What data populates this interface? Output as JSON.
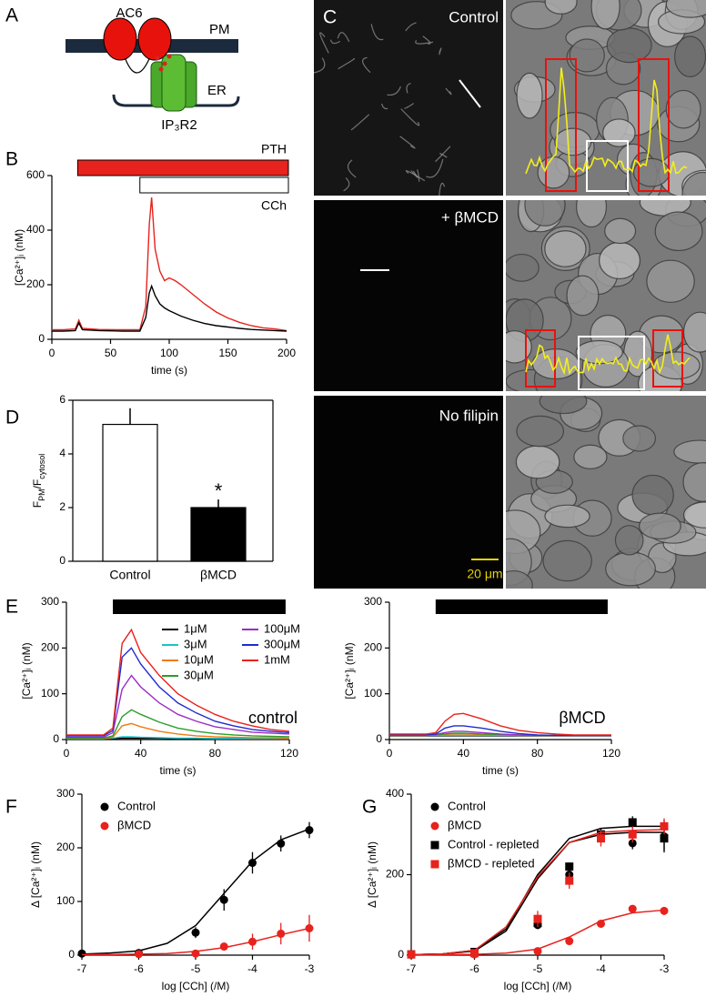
{
  "panel_labels": [
    "A",
    "B",
    "C",
    "D",
    "E",
    "F",
    "G"
  ],
  "diagram": {
    "labels": [
      "AC6",
      "PM",
      "ER",
      "IP₃R2"
    ]
  },
  "micrographs": {
    "conditions": [
      "Control",
      "+ βMCD",
      "No filipin"
    ],
    "scale_bar": "20 μm"
  },
  "chart_data": [
    {
      "type": "line",
      "x": [
        0,
        10,
        20,
        23,
        26,
        40,
        60,
        75,
        80,
        83,
        85,
        88,
        92,
        96,
        100,
        105,
        110,
        120,
        130,
        140,
        150,
        160,
        170,
        180,
        190,
        200
      ],
      "series": [
        {
          "color": "#e8221d",
          "values": [
            35,
            35,
            38,
            70,
            40,
            36,
            35,
            35,
            120,
            420,
            520,
            330,
            250,
            215,
            225,
            215,
            200,
            165,
            130,
            100,
            78,
            62,
            50,
            42,
            38,
            32
          ]
        },
        {
          "color": "#000000",
          "values": [
            30,
            30,
            32,
            60,
            35,
            32,
            30,
            30,
            80,
            170,
            195,
            160,
            130,
            115,
            105,
            95,
            85,
            70,
            58,
            50,
            45,
            40,
            36,
            34,
            32,
            30
          ]
        }
      ],
      "treatments": [
        {
          "label": "PTH",
          "start": 22,
          "end": 200,
          "color": "#e8221d"
        },
        {
          "label": "CCh",
          "start": 75,
          "end": 200,
          "color": "#ffffff"
        }
      ],
      "xlim": [
        0,
        200
      ],
      "xticks": [
        0,
        50,
        100,
        150,
        200
      ],
      "ylim": [
        0,
        600
      ],
      "yticks": [
        0,
        200,
        400,
        600
      ],
      "xlabel": "time (s)",
      "ylabel": "[Ca²⁺]ᵢ (nM)"
    },
    {
      "type": "bar",
      "categories": [
        "Control",
        "βMCD"
      ],
      "values": [
        5.1,
        2.0
      ],
      "errors": [
        0.6,
        0.3
      ],
      "colors": [
        "#ffffff",
        "#000000"
      ],
      "significance": [
        null,
        "*"
      ],
      "ylim": [
        0,
        6
      ],
      "yticks": [
        0,
        2,
        4,
        6
      ],
      "ylabel": [
        "F",
        "PM",
        "/F",
        "cytosol"
      ]
    },
    {
      "type": "line",
      "x": [
        0,
        20,
        25,
        30,
        35,
        40,
        50,
        60,
        70,
        80,
        90,
        100,
        110,
        120
      ],
      "series": [
        {
          "name": "1μM",
          "color": "#000000",
          "values": [
            2,
            2,
            2,
            3,
            3,
            3,
            3,
            2,
            2,
            2,
            2,
            2,
            2,
            2
          ]
        },
        {
          "name": "3μM",
          "color": "#19c3c9",
          "values": [
            2,
            2,
            3,
            6,
            6,
            5,
            4,
            3,
            3,
            2,
            2,
            2,
            2,
            2
          ]
        },
        {
          "name": "10μM",
          "color": "#f07a12",
          "values": [
            2,
            2,
            5,
            30,
            35,
            28,
            18,
            12,
            8,
            6,
            5,
            4,
            4,
            3
          ]
        },
        {
          "name": "30μM",
          "color": "#2a9d2a",
          "values": [
            3,
            3,
            8,
            50,
            65,
            55,
            38,
            25,
            18,
            13,
            10,
            8,
            7,
            6
          ]
        },
        {
          "name": "100μM",
          "color": "#9b2bc4",
          "values": [
            5,
            5,
            15,
            110,
            140,
            115,
            80,
            55,
            40,
            28,
            22,
            16,
            14,
            12
          ]
        },
        {
          "name": "300μM",
          "color": "#1f2bd0",
          "values": [
            8,
            8,
            20,
            180,
            200,
            165,
            115,
            80,
            58,
            40,
            30,
            22,
            18,
            15
          ]
        },
        {
          "name": "1mM",
          "color": "#e8221d",
          "values": [
            10,
            10,
            25,
            210,
            240,
            190,
            140,
            100,
            75,
            55,
            40,
            30,
            22,
            18
          ]
        }
      ],
      "stimulus": [
        25,
        118
      ],
      "annotation": "control",
      "xlim": [
        0,
        120
      ],
      "xticks": [
        0,
        40,
        80,
        120
      ],
      "ylim": [
        0,
        300
      ],
      "yticks": [
        0,
        100,
        200,
        300
      ],
      "xlabel": "time (s)",
      "ylabel": "[Ca²⁺]ᵢ (nM)"
    },
    {
      "type": "line",
      "x": [
        0,
        20,
        25,
        30,
        35,
        40,
        50,
        60,
        70,
        80,
        90,
        100,
        110,
        120
      ],
      "series": [
        {
          "color": "#000000",
          "values": [
            8,
            8,
            8,
            8,
            8,
            8,
            8,
            8,
            8,
            8,
            8,
            8,
            8,
            8
          ]
        },
        {
          "color": "#19c3c9",
          "values": [
            9,
            9,
            9,
            9,
            9,
            9,
            9,
            9,
            9,
            9,
            9,
            9,
            9,
            9
          ]
        },
        {
          "color": "#f07a12",
          "values": [
            9,
            9,
            10,
            11,
            12,
            12,
            11,
            10,
            9,
            9,
            9,
            9,
            9,
            9
          ]
        },
        {
          "color": "#2a9d2a",
          "values": [
            10,
            10,
            10,
            12,
            14,
            14,
            12,
            11,
            10,
            9,
            9,
            9,
            9,
            9
          ]
        },
        {
          "color": "#9b2bc4",
          "values": [
            10,
            10,
            11,
            15,
            18,
            18,
            15,
            12,
            10,
            9,
            9,
            9,
            9,
            9
          ]
        },
        {
          "color": "#1f2bd0",
          "values": [
            10,
            10,
            12,
            25,
            30,
            30,
            25,
            18,
            13,
            10,
            9,
            9,
            9,
            9
          ]
        },
        {
          "color": "#e8221d",
          "values": [
            12,
            12,
            15,
            40,
            55,
            57,
            45,
            30,
            20,
            15,
            12,
            10,
            10,
            10
          ]
        }
      ],
      "stimulus": [
        25,
        118
      ],
      "annotation": "βMCD",
      "xlim": [
        0,
        120
      ],
      "xticks": [
        0,
        40,
        80,
        120
      ],
      "ylim": [
        0,
        300
      ],
      "yticks": [
        0,
        100,
        200,
        300
      ],
      "xlabel": "time (s)",
      "ylabel": "[Ca²⁺]ᵢ (nM)"
    },
    {
      "type": "scatter",
      "series": [
        {
          "name": "Control",
          "color": "#000000",
          "marker": "circle",
          "x": [
            -7,
            -6,
            -5,
            -4.5,
            -4,
            -3.5,
            -3
          ],
          "values": [
            3,
            4,
            42,
            103,
            172,
            208,
            233
          ],
          "errors": [
            3,
            3,
            10,
            20,
            20,
            15,
            15
          ],
          "fit": {
            "x": [
              -7,
              -6.5,
              -6,
              -5.5,
              -5,
              -4.5,
              -4,
              -3.5,
              -3
            ],
            "values": [
              2,
              4,
              8,
              22,
              55,
              115,
              175,
              215,
              235
            ]
          }
        },
        {
          "name": "βMCD",
          "color": "#e8221d",
          "marker": "circle",
          "x": [
            -6,
            -5,
            -4.5,
            -4,
            -3.5,
            -3
          ],
          "values": [
            2,
            3,
            16,
            25,
            40,
            50
          ],
          "errors": [
            2,
            3,
            5,
            15,
            20,
            25
          ],
          "fit": {
            "x": [
              -7,
              -6.5,
              -6,
              -5.5,
              -5,
              -4.5,
              -4,
              -3.5,
              -3
            ],
            "values": [
              1,
              1,
              2,
              3,
              7,
              14,
              25,
              38,
              50
            ]
          }
        }
      ],
      "xlim": [
        -7,
        -3
      ],
      "xticks": [
        -7,
        -6,
        -5,
        -4,
        -3
      ],
      "ylim": [
        0,
        300
      ],
      "yticks": [
        0,
        100,
        200,
        300
      ],
      "xlabel": "log [CCh] (/M)",
      "ylabel": "Δ [Ca²⁺]ᵢ (nM)"
    },
    {
      "type": "scatter",
      "series": [
        {
          "name": "Control",
          "color": "#000000",
          "marker": "circle",
          "x": [
            -7,
            -6,
            -5,
            -4.5,
            -4,
            -3.5,
            -3
          ],
          "values": [
            2,
            5,
            75,
            200,
            300,
            278,
            295
          ],
          "errors": [
            3,
            5,
            10,
            15,
            15,
            15,
            40
          ],
          "fit": {
            "x": [
              -7,
              -6.5,
              -6,
              -5.5,
              -5,
              -4.5,
              -4,
              -3.5,
              -3
            ],
            "values": [
              1,
              3,
              10,
              60,
              190,
              280,
              300,
              305,
              305
            ]
          }
        },
        {
          "name": "βMCD",
          "color": "#e8221d",
          "marker": "circle",
          "x": [
            -7,
            -6,
            -5,
            -4.5,
            -4,
            -3.5,
            -3
          ],
          "values": [
            1,
            2,
            10,
            35,
            78,
            115,
            110
          ],
          "errors": [
            2,
            2,
            3,
            5,
            5,
            5,
            10
          ],
          "fit": {
            "x": [
              -7,
              -6.5,
              -6,
              -5.5,
              -5,
              -4.5,
              -4,
              -3.5,
              -3
            ],
            "values": [
              0,
              1,
              2,
              5,
              15,
              45,
              85,
              105,
              112
            ]
          }
        },
        {
          "name": "Control - repleted",
          "color": "#000000",
          "marker": "square",
          "x": [
            -7,
            -6,
            -5,
            -4.5,
            -4,
            -3.5,
            -3
          ],
          "values": [
            2,
            8,
            80,
            220,
            300,
            330,
            290
          ],
          "errors": [
            2,
            5,
            15,
            10,
            10,
            15,
            30
          ],
          "fit": {
            "x": [
              -7,
              -6.5,
              -6,
              -5.5,
              -5,
              -4.5,
              -4,
              -3.5,
              -3
            ],
            "values": [
              1,
              3,
              12,
              65,
              200,
              290,
              315,
              320,
              320
            ]
          }
        },
        {
          "name": "βMCD - repleted",
          "color": "#e8221d",
          "marker": "square",
          "x": [
            -7,
            -6,
            -5,
            -4.5,
            -4,
            -3.5,
            -3
          ],
          "values": [
            2,
            5,
            90,
            185,
            290,
            300,
            320
          ],
          "errors": [
            2,
            5,
            20,
            20,
            20,
            20,
            20
          ],
          "fit": {
            "x": [
              -7,
              -6.5,
              -6,
              -5.5,
              -5,
              -4.5,
              -4,
              -3.5,
              -3
            ],
            "values": [
              1,
              3,
              12,
              70,
              195,
              280,
              305,
              310,
              312
            ]
          }
        }
      ],
      "xlim": [
        -7,
        -3
      ],
      "xticks": [
        -7,
        -6,
        -5,
        -4,
        -3
      ],
      "ylim": [
        0,
        400
      ],
      "yticks": [
        0,
        200,
        400
      ],
      "xlabel": "log [CCh] (/M)",
      "ylabel": "Δ [Ca²⁺]ᵢ (nM)"
    }
  ]
}
